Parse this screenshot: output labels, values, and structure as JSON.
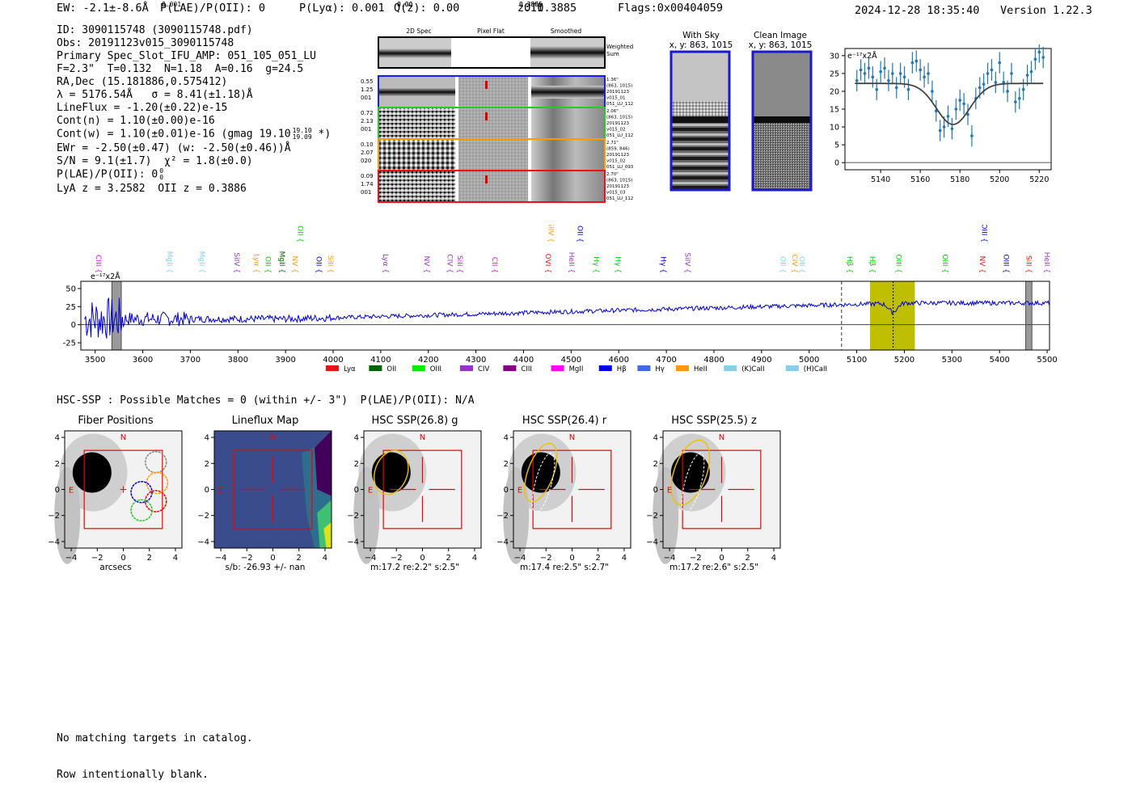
{
  "header": {
    "ew": "EW: -2.1±-8.6Å",
    "plae_label": "P(LAE)/P(OII): 0",
    "plae_sup": "0",
    "plae_sub": "0.001",
    "plya": "P(Lyα): 0.001",
    "qz_label": "Q(z): 0.00",
    "qz_sup": "0.00",
    "qz_sub": "0.00",
    "z_label": "z: 0.3885",
    "z_sup": "0.3885",
    "z_sub": "0.3885",
    "z_line": "OII",
    "flags": "Flags:0x00404059",
    "timestamp": "2024-12-28 18:35:40",
    "version": "Version 1.22.3"
  },
  "info": {
    "id": "ID: 3090115748 (3090115748.pdf)",
    "obs": "Obs: 20191123v015_3090115748",
    "slot": "Primary Spec_Slot_IFU_AMP: 051_105_051_LU",
    "fiber": "F=2.3\"  T=0.132  N=1.18  A=0.16  g=24.5",
    "radec": "RA,Dec (15.181886,0.575412)",
    "lambda": "λ = 5176.54Å   σ = 8.41(±1.18)Å",
    "lineflux": "LineFlux = -1.20(±0.22)e-15",
    "contn": "Cont(n) = 1.10(±0.00)e-16",
    "contw": "Cont(w) = 1.10(±0.01)e-16 (gmag 19.10",
    "contw_sup": "19.10",
    "contw_sub": "19.09",
    "contw_end": " *)",
    "ewr": "EWr = -2.50(±0.47) (w: -2.50(±0.46))Å",
    "sn": "S/N = 9.1(±1.7)  χ² = 1.8(±0.0)",
    "plae": "P(LAE)/P(OII): 0",
    "plae_sup": "0",
    "plae_sub": "0",
    "lya_z": "LyA z = 3.2582  OII z = 0.3886"
  },
  "twod": {
    "col_titles": [
      "2D Spec",
      "Pixel Flat",
      "Smoothed"
    ],
    "weighted_sum": [
      "Weighted",
      "Sum"
    ],
    "rows": [
      {
        "left": [
          "0.55",
          "1.25",
          "001"
        ],
        "right": [
          "1.36\"",
          "(863, 1015)",
          "20191123",
          "v015_01",
          "051_LU_112"
        ],
        "color": "#1a1aff"
      },
      {
        "left": [
          "0.72",
          "2.13",
          "001"
        ],
        "right": [
          "2.06\"",
          "(863, 1015)",
          "20191123",
          "v015_02",
          "051_LU_112"
        ],
        "color": "#22cc22"
      },
      {
        "left": [
          "0.10",
          "2.07",
          "020"
        ],
        "right": [
          "2.71\"",
          "(859, 846)",
          "20191123",
          "v015_02",
          "051_LU_093"
        ],
        "color": "#ff9900"
      },
      {
        "left": [
          "0.09",
          "1.74",
          "001"
        ],
        "right": [
          "2.70\"",
          "(863, 1015)",
          "20191123",
          "v015_03",
          "051_LU_112"
        ],
        "color": "#ee1111"
      }
    ]
  },
  "sky": {
    "with_sky_title": [
      "With Sky",
      "x, y: 863, 1015"
    ],
    "clean_title": [
      "Clean Image",
      "x, y: 863, 1015"
    ]
  },
  "zoom_chart": {
    "type": "scatter",
    "unit_label": "e⁻¹⁷x2Å",
    "xlim": [
      5122,
      5226
    ],
    "ylim": [
      -2,
      32
    ],
    "xticks": [
      5140,
      5160,
      5180,
      5200,
      5220
    ],
    "yticks": [
      0,
      5,
      10,
      15,
      20,
      25,
      30
    ],
    "points": [
      [
        5128,
        23
      ],
      [
        5130,
        26
      ],
      [
        5132,
        25
      ],
      [
        5134,
        26.5
      ],
      [
        5136,
        24
      ],
      [
        5138,
        20.5
      ],
      [
        5140,
        25.5
      ],
      [
        5142,
        26.5
      ],
      [
        5144,
        23
      ],
      [
        5146,
        25
      ],
      [
        5148,
        21
      ],
      [
        5150,
        25
      ],
      [
        5152,
        24
      ],
      [
        5154,
        20.5
      ],
      [
        5156,
        28
      ],
      [
        5158,
        28.5
      ],
      [
        5160,
        26
      ],
      [
        5162,
        24
      ],
      [
        5164,
        25
      ],
      [
        5166,
        20
      ],
      [
        5168,
        14.5
      ],
      [
        5170,
        9
      ],
      [
        5172,
        10
      ],
      [
        5174,
        13
      ],
      [
        5176,
        9.5
      ],
      [
        5178,
        15
      ],
      [
        5180,
        17.5
      ],
      [
        5182,
        16.5
      ],
      [
        5184,
        13.5
      ],
      [
        5186,
        7.5
      ],
      [
        5188,
        18
      ],
      [
        5190,
        21
      ],
      [
        5192,
        22
      ],
      [
        5194,
        25
      ],
      [
        5196,
        26
      ],
      [
        5198,
        22.5
      ],
      [
        5200,
        28
      ],
      [
        5202,
        22.5
      ],
      [
        5204,
        20
      ],
      [
        5206,
        25
      ],
      [
        5208,
        17
      ],
      [
        5210,
        18
      ],
      [
        5212,
        20.5
      ],
      [
        5214,
        24.5
      ],
      [
        5216,
        25.5
      ],
      [
        5218,
        29
      ],
      [
        5220,
        31
      ],
      [
        5222,
        29.5
      ]
    ],
    "err": 3,
    "fit": {
      "center": 5176.54,
      "sigma": 8.41,
      "continuum": 22.2,
      "depth": 11.5,
      "range": [
        5127,
        5222
      ]
    }
  },
  "full_spec": {
    "type": "line",
    "unit_label": "e⁻¹⁷x2Å",
    "xlim": [
      3470,
      5505
    ],
    "ylim": [
      -35,
      60
    ],
    "xticks": [
      3500,
      3600,
      3700,
      3800,
      3900,
      4000,
      4100,
      4200,
      4300,
      4400,
      4500,
      4600,
      4700,
      4800,
      4900,
      5000,
      5100,
      5200,
      5300,
      5400,
      5500
    ],
    "yticks": [
      -25,
      0,
      25,
      50
    ],
    "highlight": [
      5128,
      5222
    ],
    "center": 5176.54,
    "dashed": 5068,
    "gray_bands": [
      [
        3535,
        3555
      ],
      [
        5455,
        5468
      ]
    ],
    "lines": [
      {
        "name": "CIII",
        "w": 3502,
        "color": "#ff00ff",
        "row": 0
      },
      {
        "name": "MgII",
        "w": 3652,
        "color": "#87ceeb",
        "row": 0
      },
      {
        "name": "MgII",
        "w": 3720,
        "color": "#87ceeb",
        "row": 0
      },
      {
        "name": "SiIV",
        "w": 3793,
        "color": "#9932cc",
        "row": 0
      },
      {
        "name": "Lyα",
        "w": 3834,
        "color": "#ff9900",
        "row": 0
      },
      {
        "name": "OII",
        "w": 3858,
        "color": "#00cc00",
        "row": 0
      },
      {
        "name": "MgII",
        "w": 3888,
        "color": "#006400",
        "row": 0
      },
      {
        "name": "NV",
        "w": 3915,
        "color": "#ff9900",
        "row": 0
      },
      {
        "name": "OII",
        "w": 3926,
        "color": "#00cc00",
        "row": -1
      },
      {
        "name": "OII",
        "w": 3965,
        "color": "#0000cc",
        "row": 0
      },
      {
        "name": "SiII",
        "w": 3990,
        "color": "#ff9900",
        "row": 0
      },
      {
        "name": "Lyα",
        "w": 4105,
        "color": "#9932cc",
        "row": 0
      },
      {
        "name": "NV",
        "w": 4192,
        "color": "#9932cc",
        "row": 0
      },
      {
        "name": "CIV",
        "w": 4240,
        "color": "#9932cc",
        "row": 0
      },
      {
        "name": "SiII",
        "w": 4262,
        "color": "#9932cc",
        "row": 0
      },
      {
        "name": "CII",
        "w": 4335,
        "color": "#ff00ff",
        "row": 0
      },
      {
        "name": "OVI",
        "w": 4447,
        "color": "#ee1111",
        "row": 0
      },
      {
        "name": "SiIV",
        "w": 4453,
        "color": "#ff9900",
        "row": -1
      },
      {
        "name": "HeII",
        "w": 4496,
        "color": "#9932cc",
        "row": 0
      },
      {
        "name": "OII",
        "w": 4514,
        "color": "#0000cc",
        "row": -1
      },
      {
        "name": "Hγ",
        "w": 4548,
        "color": "#00cc00",
        "row": 0
      },
      {
        "name": "Hγ",
        "w": 4594,
        "color": "#00cc00",
        "row": 0
      },
      {
        "name": "Hγ",
        "w": 4689,
        "color": "#0000cc",
        "row": 0
      },
      {
        "name": "SiIV",
        "w": 4740,
        "color": "#9932cc",
        "row": 0
      },
      {
        "name": "OII",
        "w": 4940,
        "color": "#87ceeb",
        "row": 0
      },
      {
        "name": "CIV",
        "w": 4965,
        "color": "#ff9900",
        "row": 0
      },
      {
        "name": "OII",
        "w": 4980,
        "color": "#87ceeb",
        "row": 0
      },
      {
        "name": "Hβ",
        "w": 5080,
        "color": "#00cc00",
        "row": 0
      },
      {
        "name": "Hβ",
        "w": 5128,
        "color": "#00cc00",
        "row": 0
      },
      {
        "name": "OIII",
        "w": 5183,
        "color": "#00cc00",
        "row": 0
      },
      {
        "name": "OIII",
        "w": 5281,
        "color": "#00cc00",
        "row": 0
      },
      {
        "name": "NV",
        "w": 5359,
        "color": "#ee1111",
        "row": 0
      },
      {
        "name": "OIII",
        "w": 5363,
        "color": "#0000cc",
        "row": -1
      },
      {
        "name": "OIII",
        "w": 5409,
        "color": "#0000cc",
        "row": 0
      },
      {
        "name": "SiII",
        "w": 5457,
        "color": "#ee1111",
        "row": 0
      },
      {
        "name": "HeII",
        "w": 5570,
        "color": "#9932cc",
        "row": 0
      }
    ],
    "legend": [
      {
        "name": "Lyα",
        "color": "#ee1111"
      },
      {
        "name": "OII",
        "color": "#006400"
      },
      {
        "name": "OIII",
        "color": "#00ee00"
      },
      {
        "name": "CIV",
        "color": "#9932cc"
      },
      {
        "name": "CIII",
        "color": "#800080"
      },
      {
        "name": "MgII",
        "color": "#ff00ff"
      },
      {
        "name": "Hβ",
        "color": "#0000ee"
      },
      {
        "name": "Hγ",
        "color": "#4169e1"
      },
      {
        "name": "HeII",
        "color": "#ff9900"
      },
      {
        "name": "(K)CaII",
        "color": "#87ceeb"
      },
      {
        "name": "(H)CaII",
        "color": "#87ceeb"
      }
    ]
  },
  "hsc": {
    "title": "HSC-SSP : Possible Matches = 0 (within +/- 3\")  P(LAE)/P(OII): N/A",
    "cutouts": [
      {
        "title": "Fiber Positions",
        "caption": "arcsecs"
      },
      {
        "title": "Lineflux Map",
        "caption": "s/b: -26.93 +/- nan"
      },
      {
        "title": "HSC SSP(26.8) g",
        "caption": "m:17.2  re:2.2\"  s:2.5\""
      },
      {
        "title": "HSC SSP(26.4) r",
        "caption": "m:17.4  re:2.5\"  s:2.7\""
      },
      {
        "title": "HSC SSP(25.5) z",
        "caption": "m:17.2  re:2.6\"  s:2.5\""
      }
    ],
    "ticks": [
      -4,
      -2,
      0,
      2,
      4
    ],
    "north": "N",
    "east": "E"
  },
  "footer": {
    "line1": "No matching targets in catalog.",
    "line2": "Row intentionally blank."
  }
}
